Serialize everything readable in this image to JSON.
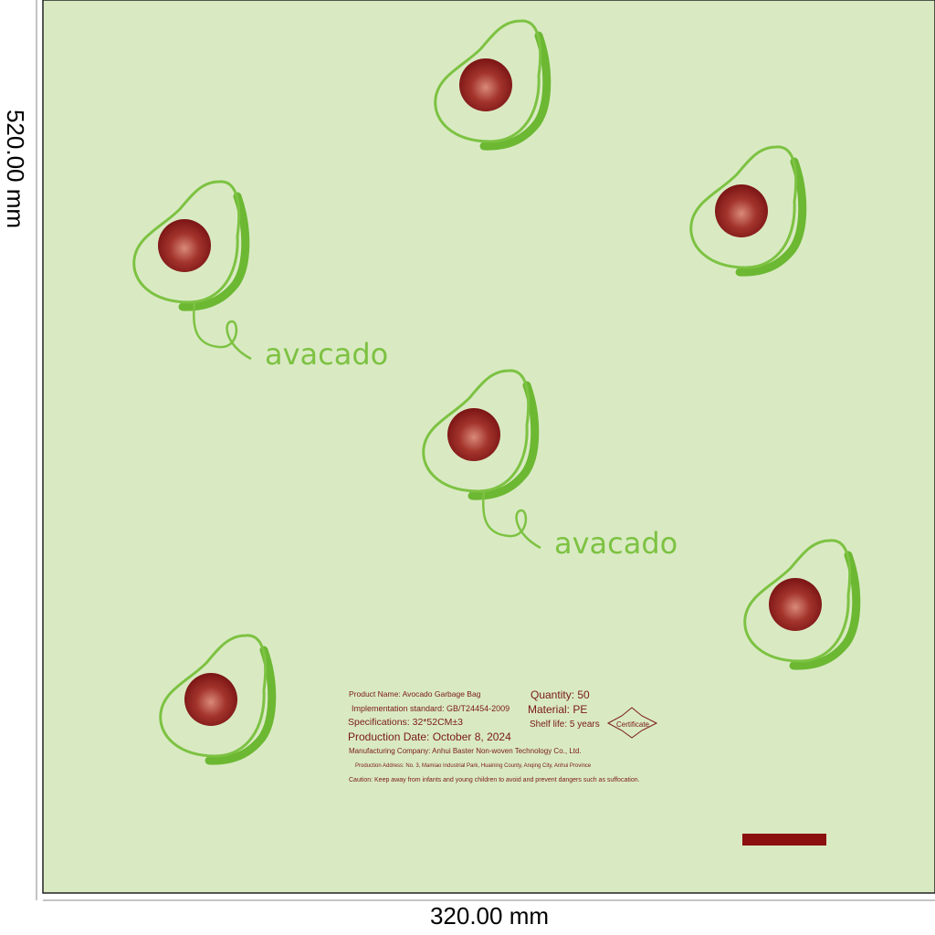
{
  "dimensions": {
    "height": "520.00 mm",
    "width": "320.00 mm"
  },
  "labels": [
    "avacado",
    "avacado"
  ],
  "info": {
    "product_name": "Product Name: Avocado Garbage Bag",
    "standard": "Implementation standard: GB/T24454-2009",
    "specifications": "Specifications: 32*52CM±3",
    "production_date": "Production Date: October 8, 2024",
    "company": "Manufacturing Company: Anhui Baster Non-woven Technology Co., Ltd.",
    "address": "Production Address: No. 3, Mamiao Industrial Park, Huaining County, Anqing City, Anhui Province",
    "caution": "Caution: Keep away from infants and young children to avoid and prevent dangers such as suffocation.",
    "quantity": "Quantity: 50",
    "material": "Material: PE",
    "shelf_life": "Shelf life: 5 years",
    "certificate": "Certificate"
  }
}
